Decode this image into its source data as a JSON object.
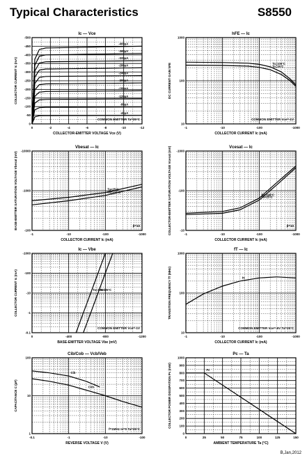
{
  "header": {
    "title": "Typical Characteristics",
    "part_number": "S8550"
  },
  "footer": "B,Jan,2012",
  "chart_data": [
    {
      "id": "ic-vce",
      "type": "line",
      "title": "Ic — Vce",
      "xlabel": "COLLECTOR-EMITTER VOLTAGE  Vce  (V)",
      "ylabel": "COLLECTOR CURRENT  Ic  (mA)",
      "xscale": "linear",
      "yscale": "linear",
      "xlim": [
        0,
        12
      ],
      "ylim": [
        0,
        500
      ],
      "xticks": [
        0,
        2,
        4,
        6,
        8,
        10,
        12
      ],
      "xtick_labels": [
        "0",
        "-2",
        "-4",
        "-6",
        "-8",
        "-10",
        "-12"
      ],
      "yticks": [
        0,
        50,
        100,
        150,
        200,
        250,
        300,
        350,
        400,
        450,
        500
      ],
      "ytick_labels": [
        "0",
        "-50",
        "-100",
        "-150",
        "-200",
        "-250",
        "-300",
        "-350",
        "-400",
        "-450",
        "-500"
      ],
      "grid": true,
      "annotation": "COMMON EMITTER  Ta=25°C",
      "series": [
        {
          "name": "-400μA",
          "values": [
            440,
            450
          ]
        },
        {
          "name": "-360μA",
          "values": [
            400,
            408
          ]
        },
        {
          "name": "-320μA",
          "values": [
            360,
            366
          ]
        },
        {
          "name": "-280μA",
          "values": [
            318,
            325
          ]
        },
        {
          "name": "-240μA",
          "values": [
            275,
            280
          ]
        },
        {
          "name": "-200μA",
          "values": [
            232,
            237
          ]
        },
        {
          "name": "-160μA",
          "values": [
            188,
            192
          ]
        },
        {
          "name": "-120μA",
          "values": [
            142,
            145
          ]
        },
        {
          "name": "-80μA",
          "values": [
            96,
            98
          ]
        },
        {
          "name": "-40μA",
          "values": [
            48,
            49
          ]
        }
      ]
    },
    {
      "id": "hfe-ic",
      "type": "line",
      "title": "hFE — Ic",
      "xlabel": "COLLECTOR CURRENT  Ic  (mA)",
      "ylabel": "DC CURRENT GAIN  hFE",
      "xscale": "log",
      "yscale": "log",
      "xlim": [
        1,
        1000
      ],
      "ylim": [
        10,
        1000
      ],
      "xticks": [
        1,
        10,
        100,
        1000
      ],
      "xtick_labels": [
        "-1",
        "-10",
        "-100",
        "-1000"
      ],
      "yticks": [
        10,
        100,
        1000
      ],
      "ytick_labels": [
        "10",
        "100",
        "1000"
      ],
      "grid": true,
      "annotation": "COMMON EMITTER  Vce=-1V",
      "series": [
        {
          "name": "Ta=100°C",
          "x": [
            1,
            10,
            50,
            100,
            200,
            400,
            700,
            1000
          ],
          "y": [
            270,
            265,
            255,
            240,
            210,
            160,
            110,
            80
          ]
        },
        {
          "name": "Ta=25°C",
          "x": [
            1,
            10,
            50,
            100,
            200,
            400,
            700,
            1000
          ],
          "y": [
            230,
            226,
            218,
            205,
            180,
            140,
            100,
            74
          ]
        }
      ]
    },
    {
      "id": "vbesat-ic",
      "type": "line",
      "title": "Vbesat — Ic",
      "xlabel": "COLLECTOR CURRENT  Ic  (mA)",
      "ylabel": "BASE-EMITTER SATURATION VOLTAGE  Vbesat  (mV)",
      "xscale": "log",
      "yscale": "log",
      "xlim": [
        1,
        1000
      ],
      "ylim": [
        100,
        10000
      ],
      "xticks": [
        1,
        10,
        100,
        1000
      ],
      "xtick_labels": [
        "-1",
        "-10",
        "-100",
        "-1000"
      ],
      "yticks": [
        100,
        1000,
        10000
      ],
      "ytick_labels": [
        "-100",
        "-1000",
        "-10000"
      ],
      "grid": true,
      "annotation": "β=10",
      "series": [
        {
          "name": "Ta=25°C",
          "x": [
            1,
            10,
            100,
            1000
          ],
          "y": [
            560,
            680,
            900,
            1450
          ]
        },
        {
          "name": "Ta=100°C",
          "x": [
            1,
            10,
            100,
            1000
          ],
          "y": [
            440,
            560,
            760,
            1250
          ]
        }
      ]
    },
    {
      "id": "vcesat-ic",
      "type": "line",
      "title": "Vcesat — Ic",
      "xlabel": "COLLECTOR CURRENT  Ic  (mA)",
      "ylabel": "COLLECTOR-EMITTER SATURATION VOLTAGE  Vcesat  (mV)",
      "xscale": "log",
      "yscale": "log",
      "xlim": [
        1,
        1000
      ],
      "ylim": [
        10,
        1000
      ],
      "xticks": [
        1,
        10,
        100,
        1000
      ],
      "xtick_labels": [
        "-1",
        "-10",
        "-100",
        "-1000"
      ],
      "yticks": [
        10,
        100,
        1000
      ],
      "ytick_labels": [
        "-10",
        "-100",
        "-1000"
      ],
      "grid": true,
      "annotation": "β=10",
      "series": [
        {
          "name": "Ta=100°C",
          "x": [
            1,
            10,
            30,
            100,
            300,
            1000
          ],
          "y": [
            27,
            30,
            37,
            65,
            160,
            420
          ]
        },
        {
          "name": "Ta=25°C",
          "x": [
            1,
            10,
            30,
            100,
            300,
            1000
          ],
          "y": [
            25,
            27,
            33,
            58,
            140,
            380
          ]
        }
      ]
    },
    {
      "id": "ic-vbe",
      "type": "line",
      "title": "Ic — Vbe",
      "xlabel": "BASE-EMITTER VOLTAGE  Vbe  (mV)",
      "ylabel": "COLLECTOR CURRENT  Ic  (mA)",
      "xscale": "linear",
      "yscale": "log",
      "xlim": [
        0,
        1200
      ],
      "ylim": [
        0.1,
        1000
      ],
      "xticks": [
        0,
        400,
        800,
        1200
      ],
      "xtick_labels": [
        "0",
        "-400",
        "-800",
        "-1200"
      ],
      "yticks": [
        0.1,
        1,
        10,
        100,
        1000
      ],
      "ytick_labels": [
        "-0.1",
        "-1",
        "-10",
        "-100",
        "-1000"
      ],
      "grid": true,
      "annotation": "COMMON EMITTER  Vce=-1V",
      "series": [
        {
          "name": "Ta=100°C",
          "x": [
            480,
            560,
            640,
            720,
            800
          ],
          "y": [
            0.1,
            1,
            10,
            100,
            1000
          ]
        },
        {
          "name": "Ta=25°C",
          "x": [
            560,
            640,
            720,
            800,
            880
          ],
          "y": [
            0.1,
            1,
            10,
            100,
            1000
          ]
        }
      ]
    },
    {
      "id": "ft-ic",
      "type": "line",
      "title": "fT — Ic",
      "xlabel": "COLLECTOR CURRENT  Ic  (mA)",
      "ylabel": "TRANSITION FREQUENCY  fT  (MHz)",
      "xscale": "log",
      "yscale": "log",
      "xlim": [
        1,
        1000
      ],
      "ylim": [
        10,
        1000
      ],
      "xticks": [
        1,
        10,
        100,
        1000
      ],
      "xtick_labels": [
        "-1",
        "-10",
        "-100",
        "-1000"
      ],
      "yticks": [
        10,
        100,
        1000
      ],
      "ytick_labels": [
        "10",
        "100",
        "1000"
      ],
      "grid": true,
      "annotation": "COMMON EMITTER  Vce=-6V  Ta=25°C",
      "series": [
        {
          "name": "fT",
          "x": [
            1,
            3,
            10,
            30,
            100,
            300,
            1000
          ],
          "y": [
            52,
            95,
            150,
            200,
            240,
            255,
            240
          ]
        }
      ]
    },
    {
      "id": "cob-vcb",
      "type": "line",
      "title": "Cib/Cob — Vcb/Veb",
      "xlabel": "REVERSE VOLTAGE  V  (V)",
      "ylabel": "CAPACITANCE  C  (pF)",
      "xscale": "log",
      "yscale": "log",
      "xlim": [
        0.1,
        100
      ],
      "ylim": [
        1,
        100
      ],
      "xticks": [
        0.1,
        1,
        10,
        100
      ],
      "xtick_labels": [
        "-0.1",
        "-1",
        "-10",
        "-100"
      ],
      "yticks": [
        1,
        10,
        100
      ],
      "ytick_labels": [
        "1",
        "10",
        "100"
      ],
      "grid": true,
      "annotation": "f=1MHz  Ie=0  Ta=25°C",
      "series": [
        {
          "name": "Cib",
          "x": [
            0.1,
            0.3,
            1,
            3,
            7
          ],
          "y": [
            45,
            40,
            33,
            24,
            17
          ]
        },
        {
          "name": "Cob",
          "x": [
            0.1,
            0.3,
            1,
            3,
            10,
            30,
            100
          ],
          "y": [
            28,
            24,
            19,
            14,
            10,
            7,
            5
          ]
        }
      ]
    },
    {
      "id": "pc-ta",
      "type": "line",
      "title": "Pc — Ta",
      "xlabel": "AMBIENT TEMPERATURE  Ta  (°C)",
      "ylabel": "COLLECTOR POWER DISSIPATION  Pc  (mW)",
      "xscale": "linear",
      "yscale": "linear",
      "xlim": [
        0,
        150
      ],
      "ylim": [
        0,
        1000
      ],
      "xticks": [
        0,
        25,
        50,
        75,
        100,
        125,
        150
      ],
      "xtick_labels": [
        "0",
        "25",
        "50",
        "75",
        "100",
        "125",
        "150"
      ],
      "yticks": [
        0,
        100,
        200,
        300,
        400,
        500,
        600,
        700,
        800,
        900,
        1000
      ],
      "ytick_labels": [
        "0",
        "100",
        "200",
        "300",
        "400",
        "500",
        "600",
        "700",
        "800",
        "900",
        "1000"
      ],
      "grid": true,
      "annotation": "",
      "series": [
        {
          "name": "Pc",
          "x": [
            0,
            25,
            150
          ],
          "y": [
            800,
            800,
            0
          ]
        }
      ]
    }
  ]
}
